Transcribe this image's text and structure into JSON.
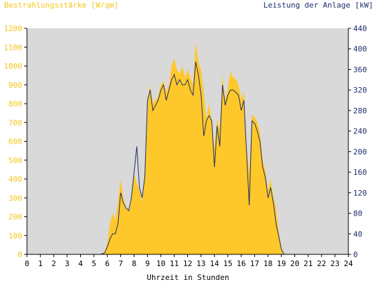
{
  "header": {
    "left_axis_label": "Bestrahlungsstärke [W/qm]",
    "right_axis_label": "Leistung der Anlage [kW]"
  },
  "chart_data": {
    "type": "area",
    "xlabel": "Uhrzeit in Stunden",
    "ylabel": "Bestrahlungsstärke [W/qm]",
    "y2label": "Leistung der Anlage [kW]",
    "xlim": [
      0,
      24
    ],
    "ylim": [
      0,
      1200
    ],
    "y2lim": [
      0,
      440
    ],
    "x_ticks": [
      0,
      1,
      2,
      3,
      4,
      5,
      6,
      7,
      8,
      9,
      10,
      11,
      12,
      13,
      14,
      15,
      16,
      17,
      18,
      19,
      20,
      21,
      22,
      23,
      24
    ],
    "y_ticks": [
      0,
      100,
      200,
      300,
      400,
      500,
      600,
      700,
      800,
      900,
      1000,
      1100,
      1200
    ],
    "y2_ticks": [
      0,
      40,
      80,
      120,
      160,
      200,
      240,
      280,
      320,
      360,
      400,
      440
    ],
    "grid": false,
    "colors": {
      "irradiance_fill": "#ffc82a",
      "power_line": "#1e2d6b",
      "plot_background": "#d9d9d9",
      "left_axis_text": "#f5c51c",
      "right_axis_text": "#1e2d6b"
    },
    "series": [
      {
        "name": "Bestrahlungsstärke [W/qm]",
        "axis": "left",
        "style": "area",
        "points": [
          [
            0,
            0
          ],
          [
            5.5,
            0
          ],
          [
            5.8,
            10
          ],
          [
            6.0,
            60
          ],
          [
            6.2,
            160
          ],
          [
            6.4,
            220
          ],
          [
            6.6,
            180
          ],
          [
            6.8,
            280
          ],
          [
            7.0,
            400
          ],
          [
            7.2,
            300
          ],
          [
            7.4,
            250
          ],
          [
            7.6,
            230
          ],
          [
            7.8,
            300
          ],
          [
            8.0,
            430
          ],
          [
            8.2,
            380
          ],
          [
            8.4,
            340
          ],
          [
            8.6,
            280
          ],
          [
            8.8,
            430
          ],
          [
            9.0,
            820
          ],
          [
            9.2,
            900
          ],
          [
            9.4,
            800
          ],
          [
            9.6,
            820
          ],
          [
            9.8,
            840
          ],
          [
            10.0,
            900
          ],
          [
            10.2,
            920
          ],
          [
            10.4,
            860
          ],
          [
            10.6,
            900
          ],
          [
            10.8,
            1000
          ],
          [
            11.0,
            1040
          ],
          [
            11.2,
            980
          ],
          [
            11.4,
            960
          ],
          [
            11.6,
            1000
          ],
          [
            11.8,
            940
          ],
          [
            12.0,
            980
          ],
          [
            12.2,
            940
          ],
          [
            12.4,
            900
          ],
          [
            12.6,
            1130
          ],
          [
            12.8,
            1020
          ],
          [
            13.0,
            980
          ],
          [
            13.2,
            860
          ],
          [
            13.4,
            720
          ],
          [
            13.6,
            800
          ],
          [
            13.8,
            700
          ],
          [
            14.0,
            560
          ],
          [
            14.2,
            720
          ],
          [
            14.4,
            660
          ],
          [
            14.6,
            950
          ],
          [
            14.8,
            820
          ],
          [
            15.0,
            880
          ],
          [
            15.2,
            970
          ],
          [
            15.4,
            940
          ],
          [
            15.6,
            930
          ],
          [
            15.8,
            900
          ],
          [
            16.0,
            820
          ],
          [
            16.2,
            870
          ],
          [
            16.4,
            580
          ],
          [
            16.6,
            420
          ],
          [
            16.8,
            740
          ],
          [
            17.0,
            730
          ],
          [
            17.2,
            700
          ],
          [
            17.4,
            650
          ],
          [
            17.6,
            500
          ],
          [
            17.8,
            450
          ],
          [
            18.0,
            340
          ],
          [
            18.2,
            400
          ],
          [
            18.4,
            310
          ],
          [
            18.6,
            250
          ],
          [
            18.8,
            120
          ],
          [
            19.0,
            40
          ],
          [
            19.2,
            0
          ],
          [
            24,
            0
          ]
        ]
      },
      {
        "name": "Leistung der Anlage [kW]",
        "axis": "right",
        "style": "line",
        "points": [
          [
            0,
            0
          ],
          [
            5.5,
            0
          ],
          [
            5.8,
            3
          ],
          [
            6.0,
            15
          ],
          [
            6.2,
            30
          ],
          [
            6.4,
            40
          ],
          [
            6.6,
            40
          ],
          [
            6.8,
            60
          ],
          [
            7.0,
            120
          ],
          [
            7.2,
            100
          ],
          [
            7.4,
            90
          ],
          [
            7.6,
            85
          ],
          [
            7.8,
            110
          ],
          [
            8.0,
            160
          ],
          [
            8.2,
            210
          ],
          [
            8.4,
            130
          ],
          [
            8.6,
            110
          ],
          [
            8.8,
            150
          ],
          [
            9.0,
            300
          ],
          [
            9.2,
            320
          ],
          [
            9.4,
            280
          ],
          [
            9.6,
            290
          ],
          [
            9.8,
            300
          ],
          [
            10.0,
            320
          ],
          [
            10.2,
            330
          ],
          [
            10.4,
            300
          ],
          [
            10.6,
            320
          ],
          [
            10.8,
            340
          ],
          [
            11.0,
            350
          ],
          [
            11.2,
            330
          ],
          [
            11.4,
            340
          ],
          [
            11.6,
            330
          ],
          [
            11.8,
            330
          ],
          [
            12.0,
            340
          ],
          [
            12.2,
            320
          ],
          [
            12.4,
            310
          ],
          [
            12.6,
            375
          ],
          [
            12.8,
            350
          ],
          [
            13.0,
            310
          ],
          [
            13.2,
            230
          ],
          [
            13.4,
            260
          ],
          [
            13.6,
            270
          ],
          [
            13.8,
            260
          ],
          [
            14.0,
            170
          ],
          [
            14.2,
            250
          ],
          [
            14.4,
            210
          ],
          [
            14.6,
            330
          ],
          [
            14.8,
            290
          ],
          [
            15.0,
            310
          ],
          [
            15.2,
            320
          ],
          [
            15.4,
            320
          ],
          [
            15.6,
            315
          ],
          [
            15.8,
            310
          ],
          [
            16.0,
            280
          ],
          [
            16.2,
            300
          ],
          [
            16.4,
            200
          ],
          [
            16.6,
            95
          ],
          [
            16.8,
            260
          ],
          [
            17.0,
            255
          ],
          [
            17.2,
            240
          ],
          [
            17.4,
            220
          ],
          [
            17.6,
            170
          ],
          [
            17.8,
            150
          ],
          [
            18.0,
            110
          ],
          [
            18.2,
            130
          ],
          [
            18.4,
            100
          ],
          [
            18.6,
            60
          ],
          [
            18.8,
            35
          ],
          [
            19.0,
            10
          ],
          [
            19.2,
            0
          ],
          [
            24,
            0
          ]
        ]
      }
    ]
  }
}
